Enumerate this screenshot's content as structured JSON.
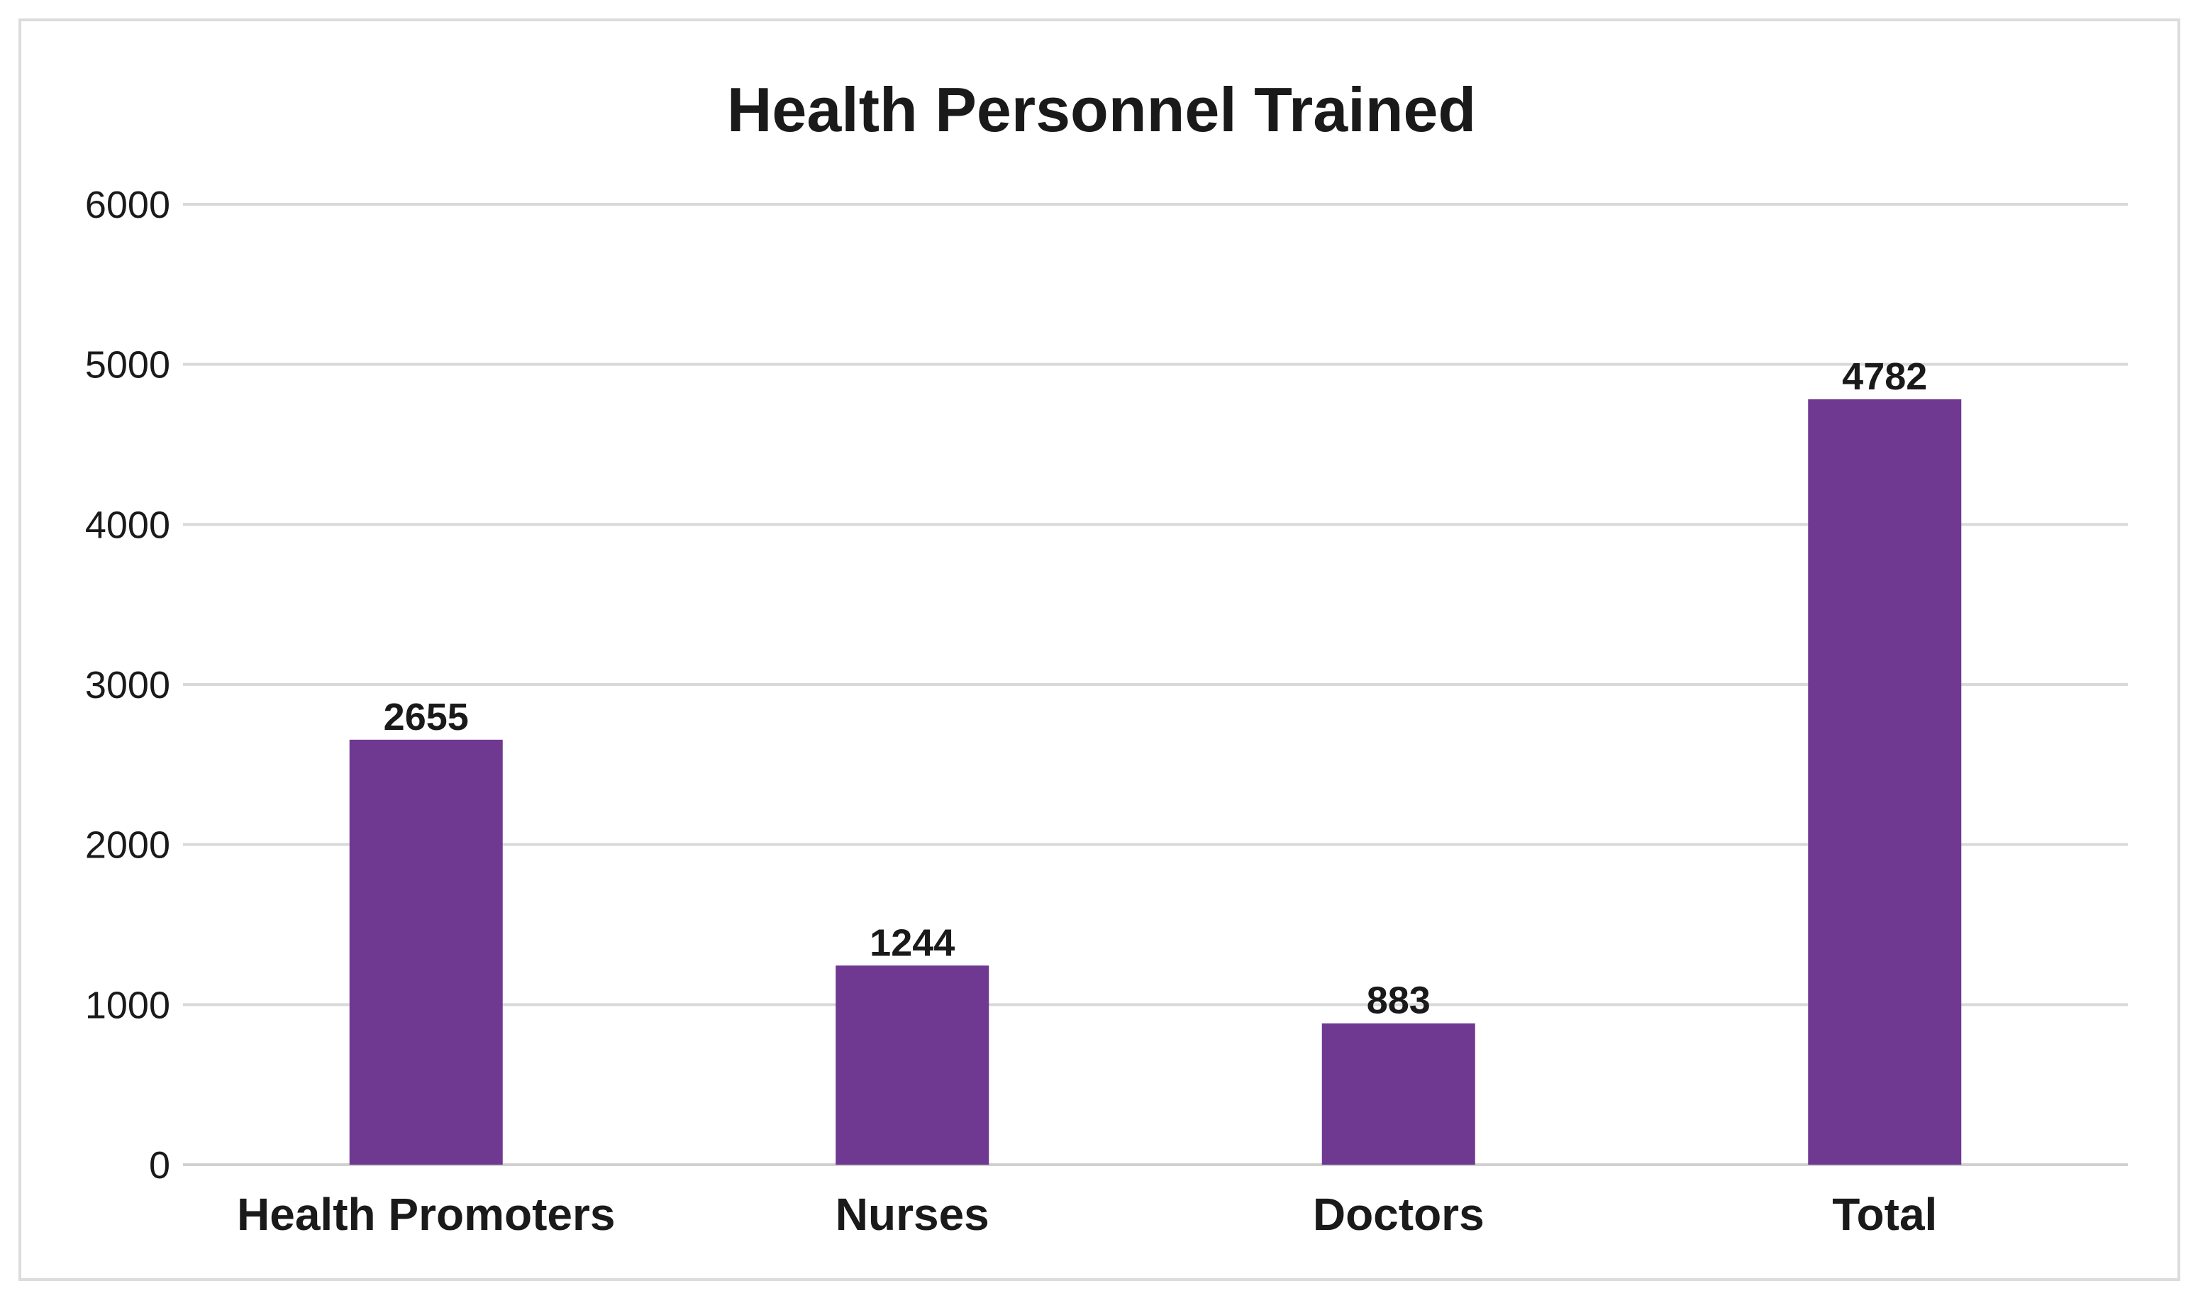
{
  "chart_data": {
    "type": "bar",
    "title": "Health Personnel Trained",
    "xlabel": "",
    "ylabel": "",
    "categories": [
      "Health Promoters",
      "Nurses",
      "Doctors",
      "Total"
    ],
    "values": [
      2655,
      1244,
      883,
      4782
    ],
    "data_labels": [
      "2655",
      "1244",
      "883",
      "4782"
    ],
    "ylim": [
      0,
      6000
    ],
    "yticks": [
      0,
      1000,
      2000,
      3000,
      4000,
      5000,
      6000
    ],
    "ytick_labels": [
      "0",
      "1000",
      "2000",
      "3000",
      "4000",
      "5000",
      "6000"
    ],
    "grid": true,
    "legend": "none",
    "bar_color": "#6f3891"
  }
}
